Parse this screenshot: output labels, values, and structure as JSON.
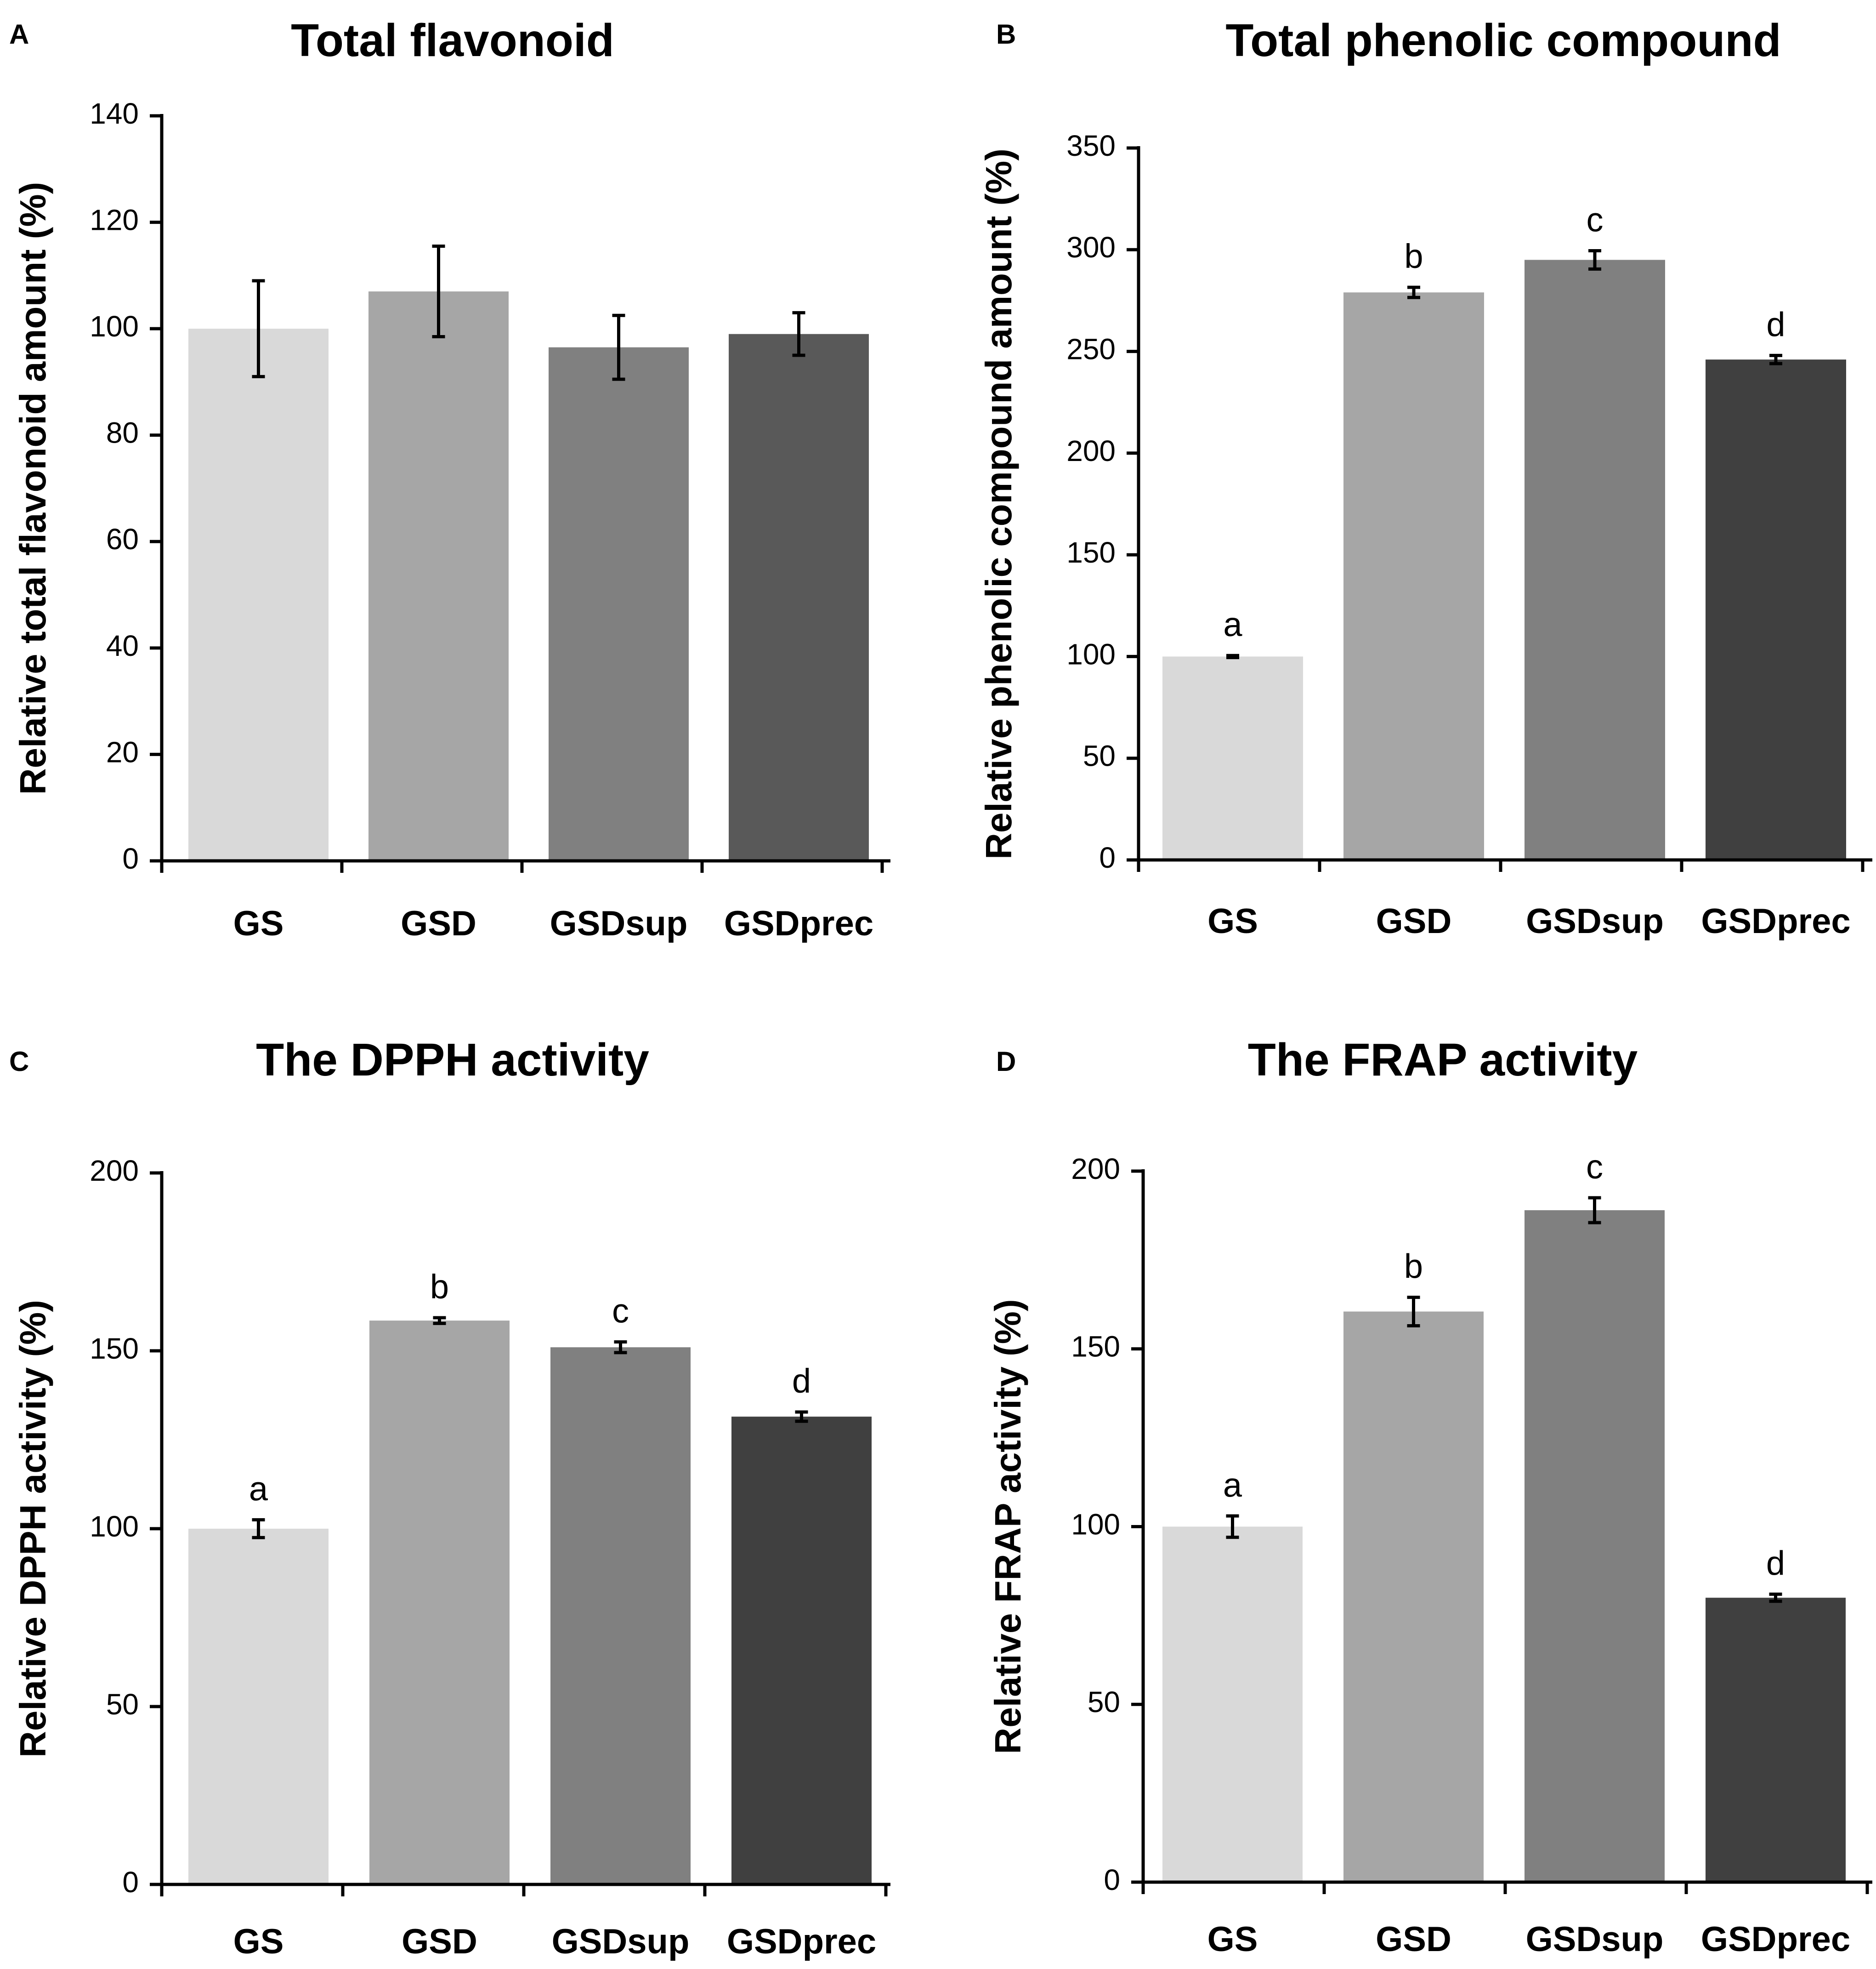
{
  "chart_data": [
    {
      "panel": "A",
      "type": "bar",
      "title": "Total flavonoid",
      "xlabel": "",
      "ylabel": "Relative total flavonoid amount (%)",
      "ylim": [
        0,
        140
      ],
      "yticks": [
        0,
        20,
        40,
        60,
        80,
        100,
        120,
        140
      ],
      "categories": [
        "GS",
        "GSD",
        "GSDsup",
        "GSDprec"
      ],
      "values": [
        100,
        107,
        96.5,
        99
      ],
      "errors": [
        9,
        8.5,
        6,
        4
      ],
      "letters": [
        "",
        "",
        "",
        ""
      ],
      "colors": [
        "#d9d9d9",
        "#a6a6a6",
        "#808080",
        "#595959"
      ]
    },
    {
      "panel": "B",
      "type": "bar",
      "title": "Total phenolic compound",
      "xlabel": "",
      "ylabel": "Relative phenolic compound amount (%)",
      "ylim": [
        0,
        350
      ],
      "yticks": [
        0,
        50,
        100,
        150,
        200,
        250,
        300,
        350
      ],
      "categories": [
        "GS",
        "GSD",
        "GSDsup",
        "GSDprec"
      ],
      "values": [
        100,
        279,
        295,
        246
      ],
      "errors": [
        0.5,
        2.5,
        4.5,
        2
      ],
      "letters": [
        "a",
        "b",
        "c",
        "d"
      ],
      "colors": [
        "#d9d9d9",
        "#a6a6a6",
        "#808080",
        "#404040"
      ]
    },
    {
      "panel": "C",
      "type": "bar",
      "title": "The DPPH activity",
      "xlabel": "",
      "ylabel": "Relative DPPH activity (%)",
      "ylim": [
        0,
        200
      ],
      "yticks": [
        0,
        50,
        100,
        150,
        200
      ],
      "categories": [
        "GS",
        "GSD",
        "GSDsup",
        "GSDprec"
      ],
      "values": [
        100,
        158.5,
        151,
        131.5
      ],
      "errors": [
        2.5,
        0.8,
        1.5,
        1.3
      ],
      "letters": [
        "a",
        "b",
        "c",
        "d"
      ],
      "colors": [
        "#d9d9d9",
        "#a6a6a6",
        "#808080",
        "#404040"
      ]
    },
    {
      "panel": "D",
      "type": "bar",
      "title": "The FRAP activity",
      "xlabel": "",
      "ylabel": "Relative FRAP activity (%)",
      "ylim": [
        0,
        200
      ],
      "yticks": [
        0,
        50,
        100,
        150,
        200
      ],
      "categories": [
        "GS",
        "GSD",
        "GSDsup",
        "GSDprec"
      ],
      "values": [
        100,
        160.5,
        189,
        80
      ],
      "errors": [
        3,
        4,
        3.5,
        1
      ],
      "letters": [
        "a",
        "b",
        "c",
        "d"
      ],
      "colors": [
        "#d9d9d9",
        "#a6a6a6",
        "#808080",
        "#404040"
      ]
    }
  ]
}
